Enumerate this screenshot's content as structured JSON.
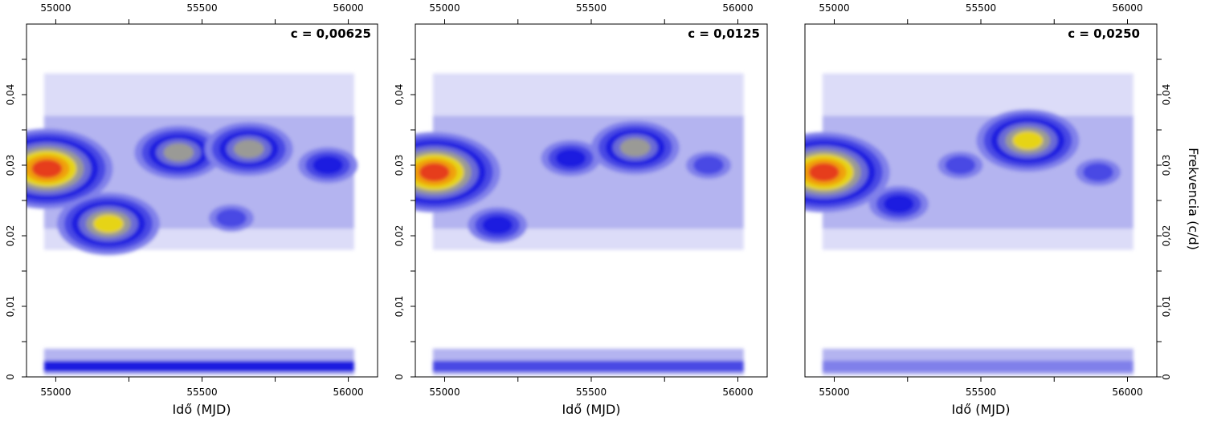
{
  "chart_data": [
    {
      "type": "heatmap",
      "title": "c = 0,00625",
      "xlabel": "Idő (MJD)",
      "ylabel": "",
      "xlim": [
        54900,
        56100
      ],
      "ylim": [
        0,
        0.05
      ],
      "xticks": [
        55000,
        55500,
        56000
      ],
      "xtick_labels": [
        "55000",
        "55500",
        "56000"
      ],
      "yticks": [
        0,
        0.01,
        0.02,
        0.03,
        0.04
      ],
      "ytick_labels": [
        "0",
        "0,01",
        "0,02",
        "0,03",
        "0,04"
      ],
      "data_range_x": [
        54960,
        56020
      ],
      "peaks": [
        {
          "x": 54970,
          "y": 0.0295,
          "level": 8
        },
        {
          "x": 55180,
          "y": 0.0217,
          "level": 6
        },
        {
          "x": 55420,
          "y": 0.0318,
          "level": 5
        },
        {
          "x": 55660,
          "y": 0.0323,
          "level": 5
        },
        {
          "x": 55930,
          "y": 0.03,
          "level": 3
        },
        {
          "x": 55600,
          "y": 0.0225,
          "level": 2
        }
      ],
      "low_band": {
        "y": 0.0015,
        "level": 4
      }
    },
    {
      "type": "heatmap",
      "title": "c = 0,0125",
      "xlabel": "Idő (MJD)",
      "ylabel": "",
      "xlim": [
        54900,
        56100
      ],
      "ylim": [
        0,
        0.05
      ],
      "xticks": [
        55000,
        55500,
        56000
      ],
      "xtick_labels": [
        "55000",
        "55500",
        "56000"
      ],
      "yticks": [
        0,
        0.01,
        0.02,
        0.03,
        0.04
      ],
      "ytick_labels": [
        "0",
        "0,01",
        "0,02",
        "0,03",
        "0,04"
      ],
      "data_range_x": [
        54960,
        56020
      ],
      "peaks": [
        {
          "x": 54965,
          "y": 0.029,
          "level": 8
        },
        {
          "x": 55180,
          "y": 0.0215,
          "level": 3
        },
        {
          "x": 55430,
          "y": 0.031,
          "level": 3
        },
        {
          "x": 55650,
          "y": 0.0325,
          "level": 5
        },
        {
          "x": 55900,
          "y": 0.03,
          "level": 2
        }
      ],
      "low_band": {
        "y": 0.0015,
        "level": 3
      }
    },
    {
      "type": "heatmap",
      "title": "c = 0,0250",
      "xlabel": "Idő (MJD)",
      "ylabel": "Frekvencia (c/d)",
      "xlim": [
        54900,
        56100
      ],
      "ylim": [
        0,
        0.05
      ],
      "xticks": [
        55000,
        55500,
        56000
      ],
      "xtick_labels": [
        "55000",
        "55500",
        "56000"
      ],
      "yticks": [
        0,
        0.01,
        0.02,
        0.03,
        0.04
      ],
      "ytick_labels": [
        "0",
        "0,01",
        "0,02",
        "0,03",
        "0,04"
      ],
      "data_range_x": [
        54960,
        56020
      ],
      "peaks": [
        {
          "x": 54965,
          "y": 0.029,
          "level": 8
        },
        {
          "x": 55220,
          "y": 0.0245,
          "level": 3
        },
        {
          "x": 55430,
          "y": 0.03,
          "level": 2
        },
        {
          "x": 55660,
          "y": 0.0335,
          "level": 6
        },
        {
          "x": 55900,
          "y": 0.029,
          "level": 2
        }
      ],
      "low_band": {
        "y": 0.0015,
        "level": 2
      }
    }
  ],
  "palette": [
    "#ffffff",
    "#dcdcf8",
    "#b4b4f0",
    "#8080ea",
    "#4848e4",
    "#1e1ee0",
    "#6a6ad6",
    "#9a9a96",
    "#e6d418",
    "#f0a010",
    "#e63c1a"
  ]
}
